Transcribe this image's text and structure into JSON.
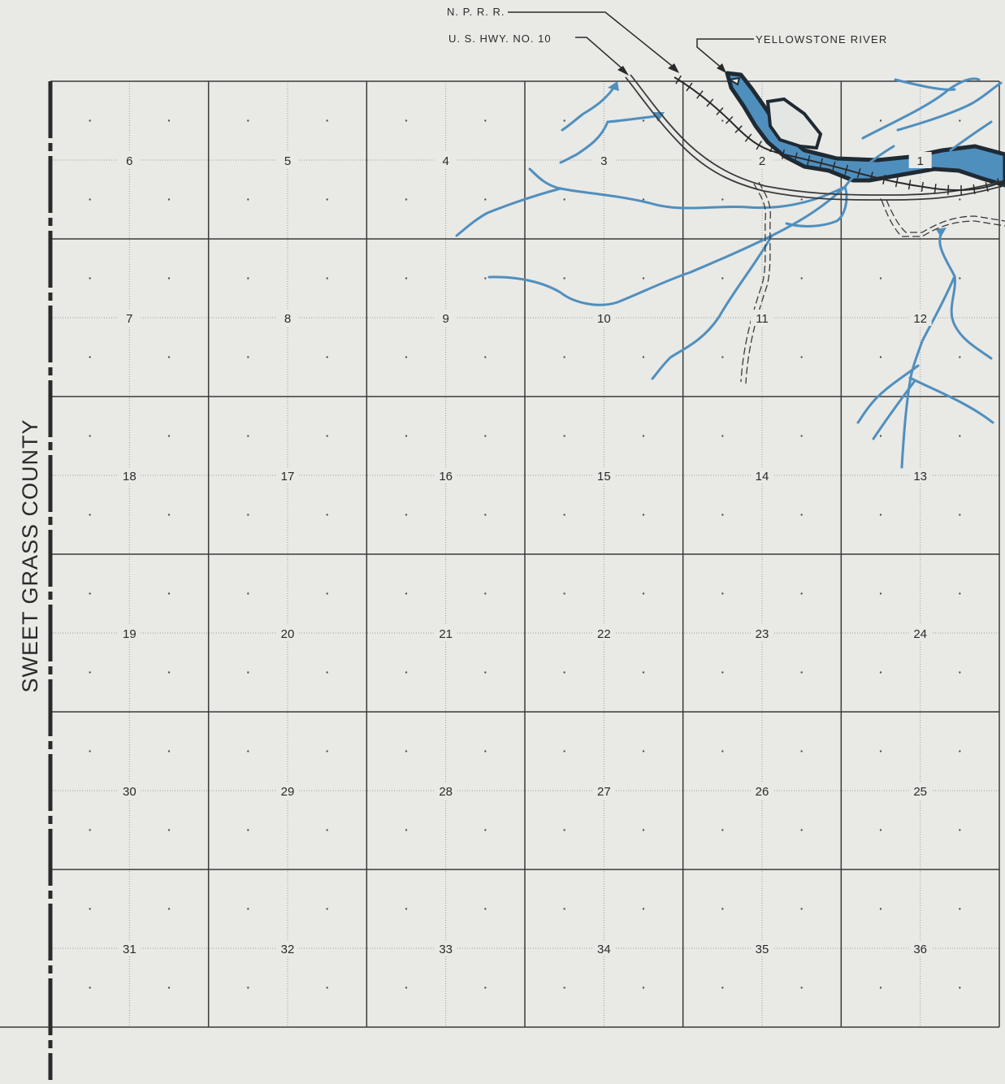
{
  "labels": {
    "railroad": "N. P. R. R.",
    "highway": "U. S. HWY. NO. 10",
    "river": "YELLOWSTONE RIVER",
    "county": "SWEET GRASS COUNTY"
  },
  "sections": [
    [
      "6",
      "5",
      "4",
      "3",
      "2",
      "1"
    ],
    [
      "7",
      "8",
      "9",
      "10",
      "11",
      "12"
    ],
    [
      "18",
      "17",
      "16",
      "15",
      "14",
      "13"
    ],
    [
      "19",
      "20",
      "21",
      "22",
      "23",
      "24"
    ],
    [
      "30",
      "29",
      "28",
      "27",
      "26",
      "25"
    ],
    [
      "31",
      "32",
      "33",
      "34",
      "35",
      "36"
    ]
  ],
  "colors": {
    "paper": "#e9e9e6",
    "ink": "#3a3a3a",
    "water": "#4f8fbe",
    "water_dark": "#1f2a33"
  }
}
